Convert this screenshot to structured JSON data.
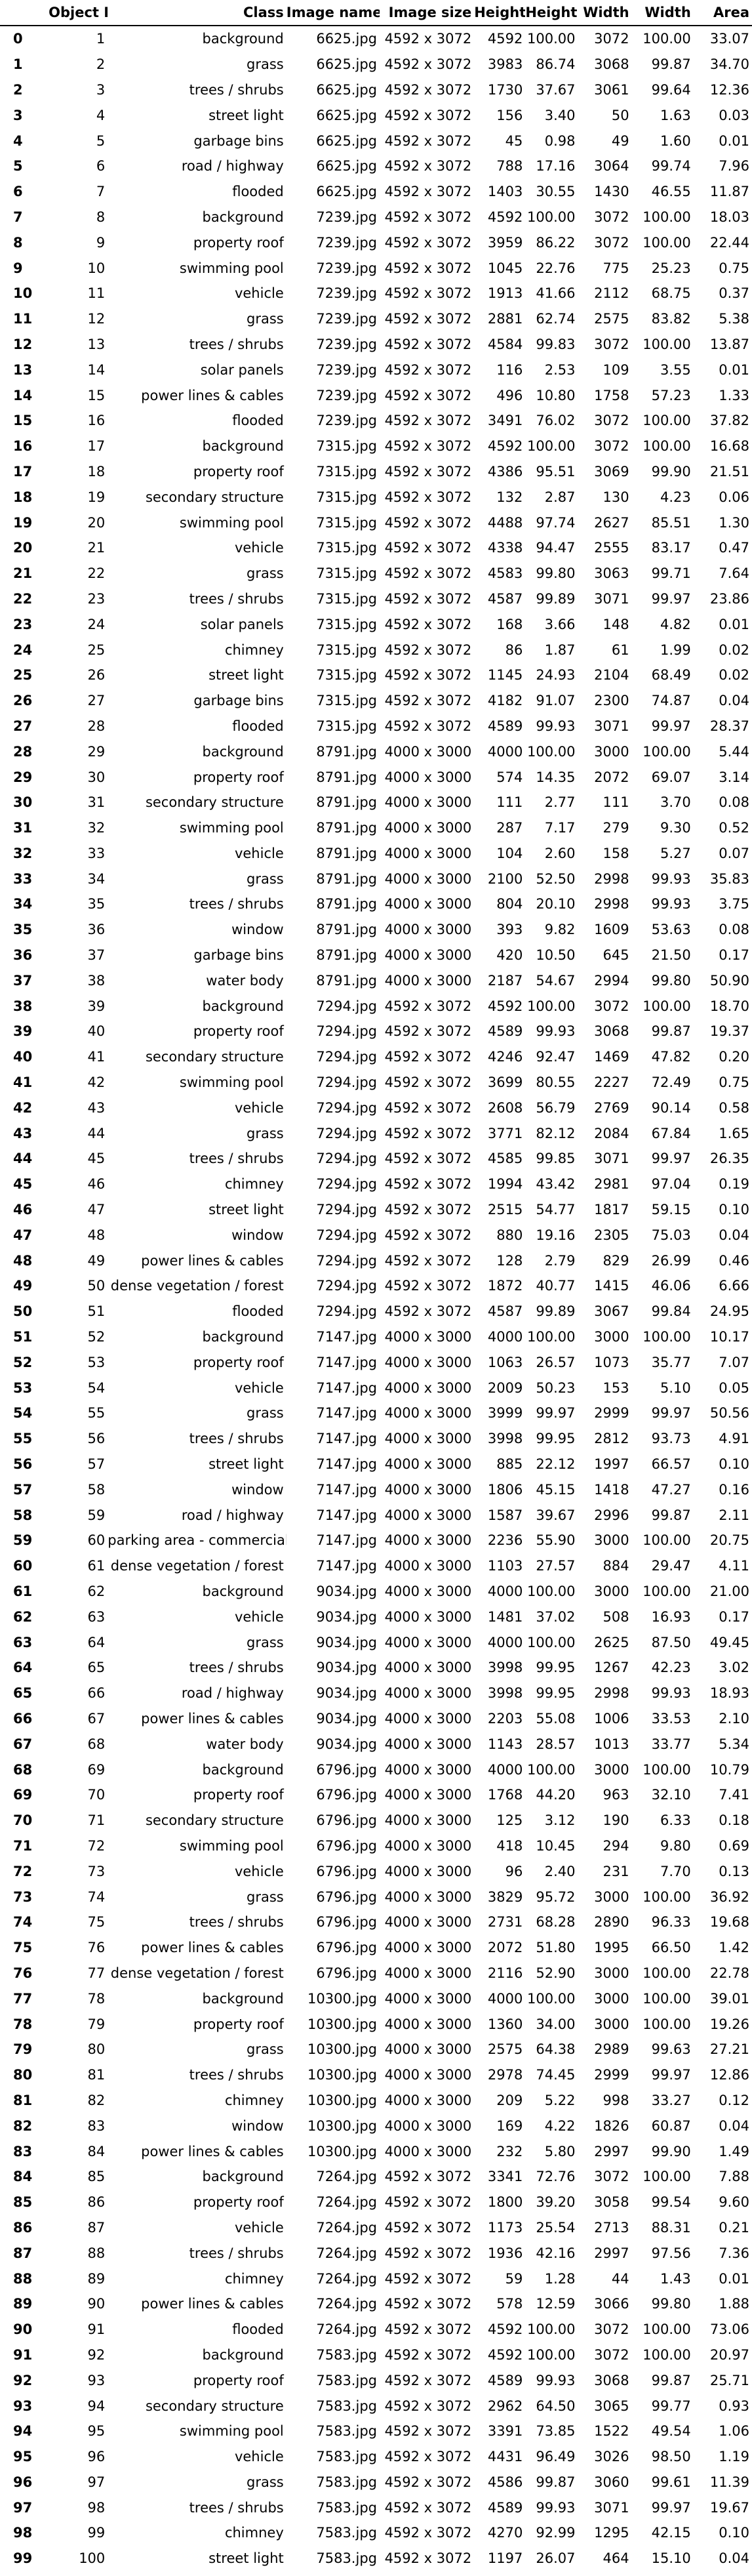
{
  "table": {
    "columns": [
      "",
      "Object ID",
      "Class",
      "Image name",
      "Image size",
      "Height",
      "Height",
      "Width",
      "Width",
      "Area"
    ],
    "rows": [
      [
        "0",
        "1",
        "background",
        "6625.jpg",
        "4592 x 3072",
        "4592",
        "100.00",
        "3072",
        "100.00",
        "33.07"
      ],
      [
        "1",
        "2",
        "grass",
        "6625.jpg",
        "4592 x 3072",
        "3983",
        "86.74",
        "3068",
        "99.87",
        "34.70"
      ],
      [
        "2",
        "3",
        "trees / shrubs",
        "6625.jpg",
        "4592 x 3072",
        "1730",
        "37.67",
        "3061",
        "99.64",
        "12.36"
      ],
      [
        "3",
        "4",
        "street light",
        "6625.jpg",
        "4592 x 3072",
        "156",
        "3.40",
        "50",
        "1.63",
        "0.03"
      ],
      [
        "4",
        "5",
        "garbage bins",
        "6625.jpg",
        "4592 x 3072",
        "45",
        "0.98",
        "49",
        "1.60",
        "0.01"
      ],
      [
        "5",
        "6",
        "road / highway",
        "6625.jpg",
        "4592 x 3072",
        "788",
        "17.16",
        "3064",
        "99.74",
        "7.96"
      ],
      [
        "6",
        "7",
        "flooded",
        "6625.jpg",
        "4592 x 3072",
        "1403",
        "30.55",
        "1430",
        "46.55",
        "11.87"
      ],
      [
        "7",
        "8",
        "background",
        "7239.jpg",
        "4592 x 3072",
        "4592",
        "100.00",
        "3072",
        "100.00",
        "18.03"
      ],
      [
        "8",
        "9",
        "property roof",
        "7239.jpg",
        "4592 x 3072",
        "3959",
        "86.22",
        "3072",
        "100.00",
        "22.44"
      ],
      [
        "9",
        "10",
        "swimming pool",
        "7239.jpg",
        "4592 x 3072",
        "1045",
        "22.76",
        "775",
        "25.23",
        "0.75"
      ],
      [
        "10",
        "11",
        "vehicle",
        "7239.jpg",
        "4592 x 3072",
        "1913",
        "41.66",
        "2112",
        "68.75",
        "0.37"
      ],
      [
        "11",
        "12",
        "grass",
        "7239.jpg",
        "4592 x 3072",
        "2881",
        "62.74",
        "2575",
        "83.82",
        "5.38"
      ],
      [
        "12",
        "13",
        "trees / shrubs",
        "7239.jpg",
        "4592 x 3072",
        "4584",
        "99.83",
        "3072",
        "100.00",
        "13.87"
      ],
      [
        "13",
        "14",
        "solar panels",
        "7239.jpg",
        "4592 x 3072",
        "116",
        "2.53",
        "109",
        "3.55",
        "0.01"
      ],
      [
        "14",
        "15",
        "power lines & cables",
        "7239.jpg",
        "4592 x 3072",
        "496",
        "10.80",
        "1758",
        "57.23",
        "1.33"
      ],
      [
        "15",
        "16",
        "flooded",
        "7239.jpg",
        "4592 x 3072",
        "3491",
        "76.02",
        "3072",
        "100.00",
        "37.82"
      ],
      [
        "16",
        "17",
        "background",
        "7315.jpg",
        "4592 x 3072",
        "4592",
        "100.00",
        "3072",
        "100.00",
        "16.68"
      ],
      [
        "17",
        "18",
        "property roof",
        "7315.jpg",
        "4592 x 3072",
        "4386",
        "95.51",
        "3069",
        "99.90",
        "21.51"
      ],
      [
        "18",
        "19",
        "secondary structure",
        "7315.jpg",
        "4592 x 3072",
        "132",
        "2.87",
        "130",
        "4.23",
        "0.06"
      ],
      [
        "19",
        "20",
        "swimming pool",
        "7315.jpg",
        "4592 x 3072",
        "4488",
        "97.74",
        "2627",
        "85.51",
        "1.30"
      ],
      [
        "20",
        "21",
        "vehicle",
        "7315.jpg",
        "4592 x 3072",
        "4338",
        "94.47",
        "2555",
        "83.17",
        "0.47"
      ],
      [
        "21",
        "22",
        "grass",
        "7315.jpg",
        "4592 x 3072",
        "4583",
        "99.80",
        "3063",
        "99.71",
        "7.64"
      ],
      [
        "22",
        "23",
        "trees / shrubs",
        "7315.jpg",
        "4592 x 3072",
        "4587",
        "99.89",
        "3071",
        "99.97",
        "23.86"
      ],
      [
        "23",
        "24",
        "solar panels",
        "7315.jpg",
        "4592 x 3072",
        "168",
        "3.66",
        "148",
        "4.82",
        "0.01"
      ],
      [
        "24",
        "25",
        "chimney",
        "7315.jpg",
        "4592 x 3072",
        "86",
        "1.87",
        "61",
        "1.99",
        "0.02"
      ],
      [
        "25",
        "26",
        "street light",
        "7315.jpg",
        "4592 x 3072",
        "1145",
        "24.93",
        "2104",
        "68.49",
        "0.02"
      ],
      [
        "26",
        "27",
        "garbage bins",
        "7315.jpg",
        "4592 x 3072",
        "4182",
        "91.07",
        "2300",
        "74.87",
        "0.04"
      ],
      [
        "27",
        "28",
        "flooded",
        "7315.jpg",
        "4592 x 3072",
        "4589",
        "99.93",
        "3071",
        "99.97",
        "28.37"
      ],
      [
        "28",
        "29",
        "background",
        "8791.jpg",
        "4000 x 3000",
        "4000",
        "100.00",
        "3000",
        "100.00",
        "5.44"
      ],
      [
        "29",
        "30",
        "property roof",
        "8791.jpg",
        "4000 x 3000",
        "574",
        "14.35",
        "2072",
        "69.07",
        "3.14"
      ],
      [
        "30",
        "31",
        "secondary structure",
        "8791.jpg",
        "4000 x 3000",
        "111",
        "2.77",
        "111",
        "3.70",
        "0.08"
      ],
      [
        "31",
        "32",
        "swimming pool",
        "8791.jpg",
        "4000 x 3000",
        "287",
        "7.17",
        "279",
        "9.30",
        "0.52"
      ],
      [
        "32",
        "33",
        "vehicle",
        "8791.jpg",
        "4000 x 3000",
        "104",
        "2.60",
        "158",
        "5.27",
        "0.07"
      ],
      [
        "33",
        "34",
        "grass",
        "8791.jpg",
        "4000 x 3000",
        "2100",
        "52.50",
        "2998",
        "99.93",
        "35.83"
      ],
      [
        "34",
        "35",
        "trees / shrubs",
        "8791.jpg",
        "4000 x 3000",
        "804",
        "20.10",
        "2998",
        "99.93",
        "3.75"
      ],
      [
        "35",
        "36",
        "window",
        "8791.jpg",
        "4000 x 3000",
        "393",
        "9.82",
        "1609",
        "53.63",
        "0.08"
      ],
      [
        "36",
        "37",
        "garbage bins",
        "8791.jpg",
        "4000 x 3000",
        "420",
        "10.50",
        "645",
        "21.50",
        "0.17"
      ],
      [
        "37",
        "38",
        "water body",
        "8791.jpg",
        "4000 x 3000",
        "2187",
        "54.67",
        "2994",
        "99.80",
        "50.90"
      ],
      [
        "38",
        "39",
        "background",
        "7294.jpg",
        "4592 x 3072",
        "4592",
        "100.00",
        "3072",
        "100.00",
        "18.70"
      ],
      [
        "39",
        "40",
        "property roof",
        "7294.jpg",
        "4592 x 3072",
        "4589",
        "99.93",
        "3068",
        "99.87",
        "19.37"
      ],
      [
        "40",
        "41",
        "secondary structure",
        "7294.jpg",
        "4592 x 3072",
        "4246",
        "92.47",
        "1469",
        "47.82",
        "0.20"
      ],
      [
        "41",
        "42",
        "swimming pool",
        "7294.jpg",
        "4592 x 3072",
        "3699",
        "80.55",
        "2227",
        "72.49",
        "0.75"
      ],
      [
        "42",
        "43",
        "vehicle",
        "7294.jpg",
        "4592 x 3072",
        "2608",
        "56.79",
        "2769",
        "90.14",
        "0.58"
      ],
      [
        "43",
        "44",
        "grass",
        "7294.jpg",
        "4592 x 3072",
        "3771",
        "82.12",
        "2084",
        "67.84",
        "1.65"
      ],
      [
        "44",
        "45",
        "trees / shrubs",
        "7294.jpg",
        "4592 x 3072",
        "4585",
        "99.85",
        "3071",
        "99.97",
        "26.35"
      ],
      [
        "45",
        "46",
        "chimney",
        "7294.jpg",
        "4592 x 3072",
        "1994",
        "43.42",
        "2981",
        "97.04",
        "0.19"
      ],
      [
        "46",
        "47",
        "street light",
        "7294.jpg",
        "4592 x 3072",
        "2515",
        "54.77",
        "1817",
        "59.15",
        "0.10"
      ],
      [
        "47",
        "48",
        "window",
        "7294.jpg",
        "4592 x 3072",
        "880",
        "19.16",
        "2305",
        "75.03",
        "0.04"
      ],
      [
        "48",
        "49",
        "power lines & cables",
        "7294.jpg",
        "4592 x 3072",
        "128",
        "2.79",
        "829",
        "26.99",
        "0.46"
      ],
      [
        "49",
        "50",
        "dense vegetation / forest",
        "7294.jpg",
        "4592 x 3072",
        "1872",
        "40.77",
        "1415",
        "46.06",
        "6.66"
      ],
      [
        "50",
        "51",
        "flooded",
        "7294.jpg",
        "4592 x 3072",
        "4587",
        "99.89",
        "3067",
        "99.84",
        "24.95"
      ],
      [
        "51",
        "52",
        "background",
        "7147.jpg",
        "4000 x 3000",
        "4000",
        "100.00",
        "3000",
        "100.00",
        "10.17"
      ],
      [
        "52",
        "53",
        "property roof",
        "7147.jpg",
        "4000 x 3000",
        "1063",
        "26.57",
        "1073",
        "35.77",
        "7.07"
      ],
      [
        "53",
        "54",
        "vehicle",
        "7147.jpg",
        "4000 x 3000",
        "2009",
        "50.23",
        "153",
        "5.10",
        "0.05"
      ],
      [
        "54",
        "55",
        "grass",
        "7147.jpg",
        "4000 x 3000",
        "3999",
        "99.97",
        "2999",
        "99.97",
        "50.56"
      ],
      [
        "55",
        "56",
        "trees / shrubs",
        "7147.jpg",
        "4000 x 3000",
        "3998",
        "99.95",
        "2812",
        "93.73",
        "4.91"
      ],
      [
        "56",
        "57",
        "street light",
        "7147.jpg",
        "4000 x 3000",
        "885",
        "22.12",
        "1997",
        "66.57",
        "0.10"
      ],
      [
        "57",
        "58",
        "window",
        "7147.jpg",
        "4000 x 3000",
        "1806",
        "45.15",
        "1418",
        "47.27",
        "0.16"
      ],
      [
        "58",
        "59",
        "road / highway",
        "7147.jpg",
        "4000 x 3000",
        "1587",
        "39.67",
        "2996",
        "99.87",
        "2.11"
      ],
      [
        "59",
        "60",
        "parking area - commercial",
        "7147.jpg",
        "4000 x 3000",
        "2236",
        "55.90",
        "3000",
        "100.00",
        "20.75"
      ],
      [
        "60",
        "61",
        "dense vegetation / forest",
        "7147.jpg",
        "4000 x 3000",
        "1103",
        "27.57",
        "884",
        "29.47",
        "4.11"
      ],
      [
        "61",
        "62",
        "background",
        "9034.jpg",
        "4000 x 3000",
        "4000",
        "100.00",
        "3000",
        "100.00",
        "21.00"
      ],
      [
        "62",
        "63",
        "vehicle",
        "9034.jpg",
        "4000 x 3000",
        "1481",
        "37.02",
        "508",
        "16.93",
        "0.17"
      ],
      [
        "63",
        "64",
        "grass",
        "9034.jpg",
        "4000 x 3000",
        "4000",
        "100.00",
        "2625",
        "87.50",
        "49.45"
      ],
      [
        "64",
        "65",
        "trees / shrubs",
        "9034.jpg",
        "4000 x 3000",
        "3998",
        "99.95",
        "1267",
        "42.23",
        "3.02"
      ],
      [
        "65",
        "66",
        "road / highway",
        "9034.jpg",
        "4000 x 3000",
        "3998",
        "99.95",
        "2998",
        "99.93",
        "18.93"
      ],
      [
        "66",
        "67",
        "power lines & cables",
        "9034.jpg",
        "4000 x 3000",
        "2203",
        "55.08",
        "1006",
        "33.53",
        "2.10"
      ],
      [
        "67",
        "68",
        "water body",
        "9034.jpg",
        "4000 x 3000",
        "1143",
        "28.57",
        "1013",
        "33.77",
        "5.34"
      ],
      [
        "68",
        "69",
        "background",
        "6796.jpg",
        "4000 x 3000",
        "4000",
        "100.00",
        "3000",
        "100.00",
        "10.79"
      ],
      [
        "69",
        "70",
        "property roof",
        "6796.jpg",
        "4000 x 3000",
        "1768",
        "44.20",
        "963",
        "32.10",
        "7.41"
      ],
      [
        "70",
        "71",
        "secondary structure",
        "6796.jpg",
        "4000 x 3000",
        "125",
        "3.12",
        "190",
        "6.33",
        "0.18"
      ],
      [
        "71",
        "72",
        "swimming pool",
        "6796.jpg",
        "4000 x 3000",
        "418",
        "10.45",
        "294",
        "9.80",
        "0.69"
      ],
      [
        "72",
        "73",
        "vehicle",
        "6796.jpg",
        "4000 x 3000",
        "96",
        "2.40",
        "231",
        "7.70",
        "0.13"
      ],
      [
        "73",
        "74",
        "grass",
        "6796.jpg",
        "4000 x 3000",
        "3829",
        "95.72",
        "3000",
        "100.00",
        "36.92"
      ],
      [
        "74",
        "75",
        "trees / shrubs",
        "6796.jpg",
        "4000 x 3000",
        "2731",
        "68.28",
        "2890",
        "96.33",
        "19.68"
      ],
      [
        "75",
        "76",
        "power lines & cables",
        "6796.jpg",
        "4000 x 3000",
        "2072",
        "51.80",
        "1995",
        "66.50",
        "1.42"
      ],
      [
        "76",
        "77",
        "dense vegetation / forest",
        "6796.jpg",
        "4000 x 3000",
        "2116",
        "52.90",
        "3000",
        "100.00",
        "22.78"
      ],
      [
        "77",
        "78",
        "background",
        "10300.jpg",
        "4000 x 3000",
        "4000",
        "100.00",
        "3000",
        "100.00",
        "39.01"
      ],
      [
        "78",
        "79",
        "property roof",
        "10300.jpg",
        "4000 x 3000",
        "1360",
        "34.00",
        "3000",
        "100.00",
        "19.26"
      ],
      [
        "79",
        "80",
        "grass",
        "10300.jpg",
        "4000 x 3000",
        "2575",
        "64.38",
        "2989",
        "99.63",
        "27.21"
      ],
      [
        "80",
        "81",
        "trees / shrubs",
        "10300.jpg",
        "4000 x 3000",
        "2978",
        "74.45",
        "2999",
        "99.97",
        "12.86"
      ],
      [
        "81",
        "82",
        "chimney",
        "10300.jpg",
        "4000 x 3000",
        "209",
        "5.22",
        "998",
        "33.27",
        "0.12"
      ],
      [
        "82",
        "83",
        "window",
        "10300.jpg",
        "4000 x 3000",
        "169",
        "4.22",
        "1826",
        "60.87",
        "0.04"
      ],
      [
        "83",
        "84",
        "power lines & cables",
        "10300.jpg",
        "4000 x 3000",
        "232",
        "5.80",
        "2997",
        "99.90",
        "1.49"
      ],
      [
        "84",
        "85",
        "background",
        "7264.jpg",
        "4592 x 3072",
        "3341",
        "72.76",
        "3072",
        "100.00",
        "7.88"
      ],
      [
        "85",
        "86",
        "property roof",
        "7264.jpg",
        "4592 x 3072",
        "1800",
        "39.20",
        "3058",
        "99.54",
        "9.60"
      ],
      [
        "86",
        "87",
        "vehicle",
        "7264.jpg",
        "4592 x 3072",
        "1173",
        "25.54",
        "2713",
        "88.31",
        "0.21"
      ],
      [
        "87",
        "88",
        "trees / shrubs",
        "7264.jpg",
        "4592 x 3072",
        "1936",
        "42.16",
        "2997",
        "97.56",
        "7.36"
      ],
      [
        "88",
        "89",
        "chimney",
        "7264.jpg",
        "4592 x 3072",
        "59",
        "1.28",
        "44",
        "1.43",
        "0.01"
      ],
      [
        "89",
        "90",
        "power lines & cables",
        "7264.jpg",
        "4592 x 3072",
        "578",
        "12.59",
        "3066",
        "99.80",
        "1.88"
      ],
      [
        "90",
        "91",
        "flooded",
        "7264.jpg",
        "4592 x 3072",
        "4592",
        "100.00",
        "3072",
        "100.00",
        "73.06"
      ],
      [
        "91",
        "92",
        "background",
        "7583.jpg",
        "4592 x 3072",
        "4592",
        "100.00",
        "3072",
        "100.00",
        "20.97"
      ],
      [
        "92",
        "93",
        "property roof",
        "7583.jpg",
        "4592 x 3072",
        "4589",
        "99.93",
        "3068",
        "99.87",
        "25.71"
      ],
      [
        "93",
        "94",
        "secondary structure",
        "7583.jpg",
        "4592 x 3072",
        "2962",
        "64.50",
        "3065",
        "99.77",
        "0.93"
      ],
      [
        "94",
        "95",
        "swimming pool",
        "7583.jpg",
        "4592 x 3072",
        "3391",
        "73.85",
        "1522",
        "49.54",
        "1.06"
      ],
      [
        "95",
        "96",
        "vehicle",
        "7583.jpg",
        "4592 x 3072",
        "4431",
        "96.49",
        "3026",
        "98.50",
        "1.19"
      ],
      [
        "96",
        "97",
        "grass",
        "7583.jpg",
        "4592 x 3072",
        "4586",
        "99.87",
        "3060",
        "99.61",
        "11.39"
      ],
      [
        "97",
        "98",
        "trees / shrubs",
        "7583.jpg",
        "4592 x 3072",
        "4589",
        "99.93",
        "3071",
        "99.97",
        "19.67"
      ],
      [
        "98",
        "99",
        "chimney",
        "7583.jpg",
        "4592 x 3072",
        "4270",
        "92.99",
        "1295",
        "42.15",
        "0.10"
      ],
      [
        "99",
        "100",
        "street light",
        "7583.jpg",
        "4592 x 3072",
        "1197",
        "26.07",
        "464",
        "15.10",
        "0.04"
      ]
    ]
  }
}
